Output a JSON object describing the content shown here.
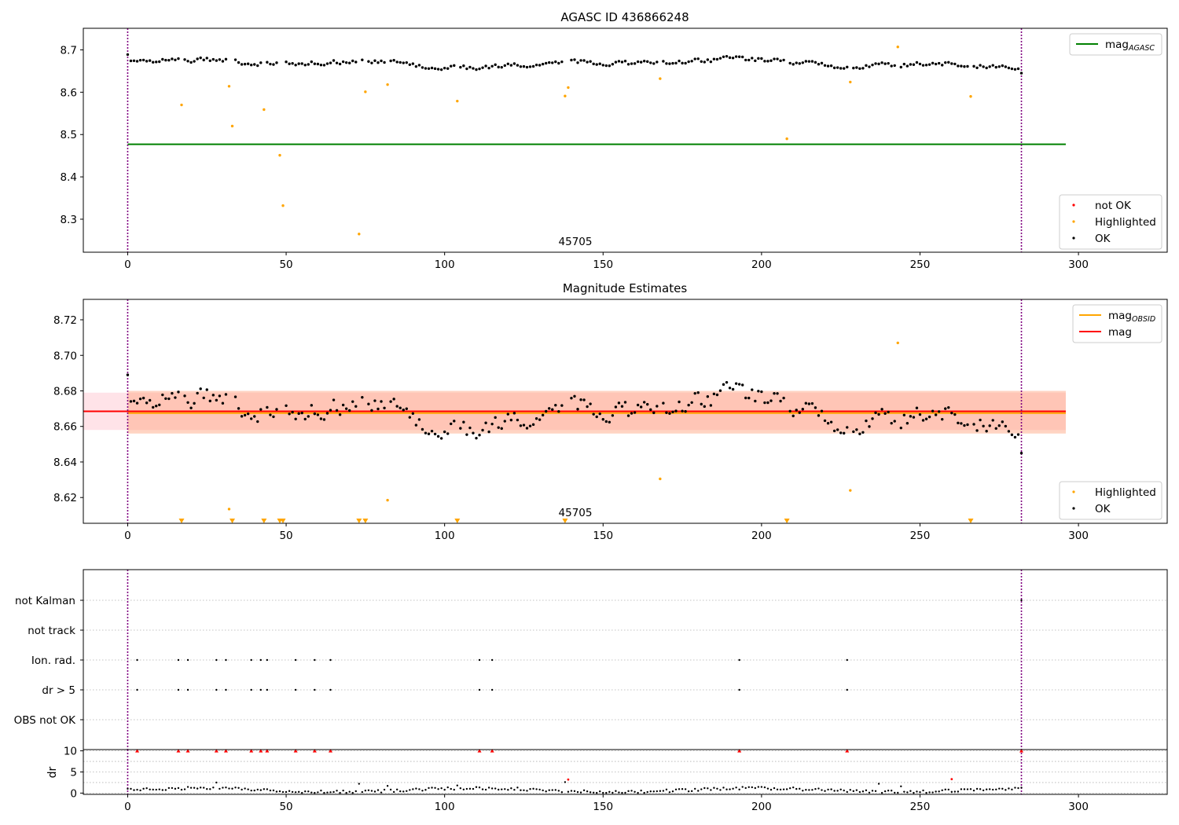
{
  "colors": {
    "ok": "#000000",
    "highlighted": "#ffa500",
    "not_ok": "#ff0000",
    "agasc": "#008000",
    "mag": "#ff0000",
    "mag_obsid": "#ffa500",
    "obs_boundary": "#800080",
    "mag_band": "#ffc0cb",
    "obsid_band": "#ffa07a"
  },
  "chart_data": [
    {
      "id": "agasc",
      "type": "scatter",
      "title": "AGASC ID 436866248",
      "xlim": [
        -14,
        328
      ],
      "ylim": [
        8.222,
        8.751
      ],
      "xticks": [
        0,
        50,
        100,
        150,
        200,
        250,
        300
      ],
      "yticks": [
        8.3,
        8.4,
        8.5,
        8.6,
        8.7
      ],
      "ytick_labels": [
        "8.3",
        "8.4",
        "8.5",
        "8.6",
        "8.7"
      ],
      "grid": false,
      "obs_boundaries": [
        0,
        282
      ],
      "annotations": [
        {
          "text": "45705",
          "x": 141,
          "y": 8.241
        }
      ],
      "hlines": [
        {
          "name": "mag_AGASC",
          "y": 8.477,
          "x": [
            0,
            296
          ],
          "color": "#008000"
        }
      ],
      "legends": [
        {
          "position": "upper-right",
          "entries": [
            {
              "label": "mag",
              "sub": "AGASC",
              "kind": "line",
              "color": "#008000"
            }
          ]
        },
        {
          "position": "lower-right",
          "entries": [
            {
              "label": "not OK",
              "kind": "dot",
              "color": "#ff0000"
            },
            {
              "label": "Highlighted",
              "kind": "dot",
              "color": "#ffa500"
            },
            {
              "label": "OK",
              "kind": "dot",
              "color": "#000000"
            }
          ]
        }
      ],
      "series": [
        {
          "name": "Highlighted",
          "points": [
            [
              17,
              8.57
            ],
            [
              32,
              8.614
            ],
            [
              33,
              8.52
            ],
            [
              43,
              8.559
            ],
            [
              48,
              8.451
            ],
            [
              49,
              8.332
            ],
            [
              73,
              8.265
            ],
            [
              75,
              8.601
            ],
            [
              82,
              8.618
            ],
            [
              104,
              8.579
            ],
            [
              138,
              8.591
            ],
            [
              139,
              8.611
            ],
            [
              168,
              8.632
            ],
            [
              208,
              8.49
            ],
            [
              228,
              8.624
            ],
            [
              243,
              8.707
            ],
            [
              266,
              8.59
            ]
          ]
        }
      ]
    },
    {
      "id": "estimates",
      "type": "scatter",
      "title": "Magnitude Estimates",
      "xlim": [
        -14,
        328
      ],
      "ylim": [
        8.6055,
        8.7315
      ],
      "xticks": [
        0,
        50,
        100,
        150,
        200,
        250,
        300
      ],
      "yticks": [
        8.62,
        8.64,
        8.66,
        8.68,
        8.7,
        8.72
      ],
      "ytick_labels": [
        "8.62",
        "8.64",
        "8.66",
        "8.68",
        "8.70",
        "8.72"
      ],
      "grid": false,
      "obs_boundaries": [
        0,
        282
      ],
      "annotations": [
        {
          "text": "45705",
          "x": 141,
          "y": 8.609
        }
      ],
      "bands": [
        {
          "name": "mag",
          "y": [
            8.658,
            8.679
          ],
          "x": [
            -14,
            296
          ],
          "color": "#ffc0cb"
        },
        {
          "name": "mag_OBSID",
          "y": [
            8.656,
            8.68
          ],
          "x": [
            0,
            296
          ],
          "color": "#ffa07a"
        }
      ],
      "hlines": [
        {
          "name": "mag_OBSID",
          "y": 8.6675,
          "x": [
            0,
            296
          ],
          "color": "#ffa500"
        },
        {
          "name": "mag",
          "y": 8.6685,
          "x": [
            -14,
            296
          ],
          "color": "#ff0000"
        }
      ],
      "legends": [
        {
          "position": "upper-right",
          "entries": [
            {
              "label": "mag",
              "sub": "OBSID",
              "kind": "line",
              "color": "#ffa500"
            },
            {
              "label": "mag",
              "kind": "line",
              "color": "#ff0000"
            }
          ]
        },
        {
          "position": "lower-right",
          "entries": [
            {
              "label": "Highlighted",
              "kind": "dot",
              "color": "#ffa500"
            },
            {
              "label": "OK",
              "kind": "dot",
              "color": "#000000"
            }
          ]
        }
      ],
      "series": [
        {
          "name": "Highlighted",
          "points": [
            [
              32,
              8.6135
            ],
            [
              82,
              8.6185
            ],
            [
              168,
              8.6305
            ],
            [
              228,
              8.624
            ],
            [
              243,
              8.707
            ]
          ]
        },
        {
          "name": "Highlighted (below axis)",
          "marker": "triangle-down",
          "x": [
            17,
            33,
            43,
            48,
            49,
            73,
            75,
            104,
            138,
            208,
            266
          ]
        }
      ]
    },
    {
      "id": "flags",
      "type": "scatter",
      "title": "",
      "xlim": [
        -14,
        328
      ],
      "grid": "y",
      "obs_boundaries": [
        0,
        282
      ],
      "rows": [
        "not Kalman",
        "not track",
        "Ion. rad.",
        "dr > 5",
        "OBS not OK"
      ],
      "flagged_points": [
        {
          "row": "Ion. rad.",
          "x": [
            3,
            16,
            19,
            28,
            31,
            39,
            42,
            44,
            53,
            59,
            64,
            111,
            115,
            193,
            227
          ]
        },
        {
          "row": "dr > 5",
          "x": [
            3,
            16,
            19,
            28,
            31,
            39,
            42,
            44,
            53,
            59,
            64,
            111,
            115,
            193,
            227
          ]
        },
        {
          "row": "not Kalman",
          "x": [
            282
          ]
        }
      ]
    },
    {
      "id": "dr",
      "type": "scatter",
      "ylabel": "dr",
      "xlim": [
        -14,
        328
      ],
      "ylim": [
        -0.3,
        10.3
      ],
      "xticks": [
        0,
        50,
        100,
        150,
        200,
        250,
        300
      ],
      "yticks": [
        0,
        5,
        10
      ],
      "ytick_labels": [
        "0",
        "5",
        "10"
      ],
      "grid": "y",
      "obs_boundaries": [
        0,
        282
      ],
      "clipped_points": {
        "y": 10,
        "x": [
          3,
          16,
          19,
          28,
          31,
          39,
          42,
          44,
          53,
          59,
          64,
          111,
          115,
          193,
          227,
          282
        ]
      },
      "red_points": [
        [
          139,
          3.2
        ],
        [
          260,
          3.3
        ]
      ],
      "outliers": [
        [
          28,
          2.5
        ],
        [
          73,
          2.2
        ],
        [
          82,
          1.7
        ],
        [
          104,
          1.8
        ],
        [
          138,
          2.6
        ],
        [
          237,
          2.2
        ],
        [
          244,
          1.6
        ]
      ]
    }
  ]
}
